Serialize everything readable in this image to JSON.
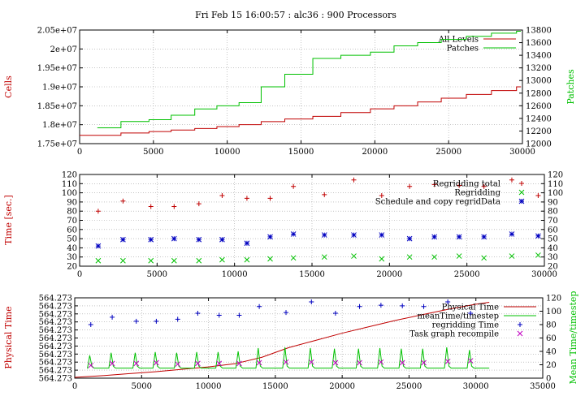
{
  "title": "Fri Feb 15 16:00:57 : alc36 : 900 Processors",
  "colors": {
    "red": "#c00000",
    "green": "#00c000",
    "blue": "#0000c0",
    "magenta": "#c000c0",
    "grid": "#a0a0a0"
  },
  "chart_data": [
    {
      "type": "line",
      "ylabel": "Cells",
      "y2label": "Patches",
      "xlim": [
        0,
        30000
      ],
      "ylim": [
        17500000,
        20500000
      ],
      "y2lim": [
        12000,
        13800
      ],
      "xticks": [
        "0",
        "5000",
        "10000",
        "15000",
        "20000",
        "25000",
        "30000"
      ],
      "yticks": [
        "1.75e+07",
        "1.8e+07",
        "1.85e+07",
        "1.9e+07",
        "1.95e+07",
        "2e+07",
        "2.05e+07"
      ],
      "y2ticks": [
        "12000",
        "12200",
        "12400",
        "12600",
        "12800",
        "13000",
        "13200",
        "13400",
        "13600",
        "13800"
      ],
      "legend_position": "top-right",
      "series": [
        {
          "name": "All Levels",
          "axis": "left",
          "color": "red",
          "step": true,
          "x": [
            0,
            2800,
            4700,
            6200,
            7800,
            9300,
            10800,
            12300,
            13900,
            15800,
            17700,
            19700,
            21300,
            22900,
            24500,
            26200,
            27900,
            29600
          ],
          "y": [
            17720000,
            17780000,
            17820000,
            17860000,
            17900000,
            17950000,
            18000000,
            18080000,
            18150000,
            18220000,
            18320000,
            18420000,
            18500000,
            18600000,
            18700000,
            18800000,
            18900000,
            19000000
          ]
        },
        {
          "name": "Patches",
          "axis": "right",
          "color": "green",
          "step": true,
          "x": [
            1200,
            2800,
            4700,
            6200,
            7800,
            9300,
            10800,
            12300,
            13900,
            15800,
            17700,
            19700,
            21300,
            22900,
            24500,
            26200,
            27900,
            29600
          ],
          "y": [
            12250,
            12350,
            12380,
            12450,
            12550,
            12600,
            12650,
            12900,
            13100,
            13350,
            13400,
            13450,
            13550,
            13600,
            13650,
            13700,
            13750,
            13780
          ]
        }
      ]
    },
    {
      "type": "scatter",
      "ylabel": "Time [sec.]",
      "xlim": [
        0,
        30000
      ],
      "ylim": [
        20,
        120
      ],
      "y2lim": [
        20,
        120
      ],
      "xticks": [
        "0",
        "5000",
        "10000",
        "15000",
        "20000",
        "25000",
        "30000"
      ],
      "yticks": [
        "20",
        "30",
        "40",
        "50",
        "60",
        "70",
        "80",
        "90",
        "100",
        "110",
        "120"
      ],
      "y2ticks": [
        "20",
        "30",
        "40",
        "50",
        "60",
        "70",
        "80",
        "90",
        "100",
        "110",
        "120"
      ],
      "legend_position": "top-right",
      "series": [
        {
          "name": "Regridding total",
          "marker": "plus",
          "color": "red",
          "x": [
            1200,
            2800,
            4600,
            6100,
            7700,
            9200,
            10800,
            12300,
            13800,
            15800,
            17700,
            19500,
            21300,
            22900,
            24500,
            26100,
            27900,
            29600
          ],
          "y": [
            80,
            91,
            85,
            85,
            88,
            97,
            94,
            94,
            107,
            98,
            114,
            97,
            107,
            109,
            108,
            107,
            114,
            97
          ]
        },
        {
          "name": "Regridding",
          "marker": "cross",
          "color": "green",
          "x": [
            1200,
            2800,
            4600,
            6100,
            7700,
            9200,
            10800,
            12300,
            13800,
            15800,
            17700,
            19500,
            21300,
            22900,
            24500,
            26100,
            27900,
            29600
          ],
          "y": [
            26,
            26,
            26,
            26,
            26,
            27,
            27,
            28,
            29,
            30,
            31,
            28,
            30,
            30,
            31,
            29,
            31,
            32
          ]
        },
        {
          "name": "Schedule and copy regridData",
          "marker": "star",
          "color": "blue",
          "x": [
            1200,
            2800,
            4600,
            6100,
            7700,
            9200,
            10800,
            12300,
            13800,
            15800,
            17700,
            19500,
            21300,
            22900,
            24500,
            26100,
            27900,
            29600
          ],
          "y": [
            42,
            49,
            49,
            50,
            49,
            49,
            45,
            52,
            55,
            54,
            54,
            54,
            50,
            52,
            52,
            52,
            55,
            53
          ]
        }
      ]
    },
    {
      "type": "line",
      "ylabel": "Physical Time",
      "y2label": "Mean Time/timestep",
      "xlim": [
        0,
        35000
      ],
      "ylim": [
        0,
        10
      ],
      "y2lim": [
        0,
        120
      ],
      "xticks": [
        "0",
        "5000",
        "10000",
        "15000",
        "20000",
        "25000",
        "30000",
        "35000"
      ],
      "yticks": [
        "564.273",
        "564.273",
        "564.273",
        "564.273",
        "564.273",
        "564.273",
        "564.273",
        "564.273",
        "564.273",
        "564.273",
        "564.273"
      ],
      "y2ticks": [
        "0",
        "20",
        "40",
        "60",
        "80",
        "100",
        "120"
      ],
      "legend_position": "top-right",
      "series": [
        {
          "name": "Physical Time",
          "axis": "left",
          "color": "red",
          "x": [
            0,
            2000,
            4000,
            6000,
            8000,
            10000,
            12000,
            14000,
            16000,
            18000,
            20000,
            22000,
            24000,
            26000,
            28000,
            30000,
            31000
          ],
          "y": [
            0.1,
            0.3,
            0.55,
            0.8,
            1.1,
            1.4,
            1.8,
            2.6,
            3.8,
            4.7,
            5.6,
            6.4,
            7.2,
            7.9,
            8.6,
            9.2,
            9.45
          ]
        },
        {
          "name": "meanTime/timestep",
          "axis": "right",
          "color": "green",
          "line": "spiky",
          "baseline": 15,
          "peaks_x": [
            1200,
            2800,
            4600,
            6100,
            7700,
            9200,
            10800,
            12300,
            13800,
            15800,
            17700,
            19500,
            21300,
            22900,
            24500,
            26100,
            27900,
            29600
          ],
          "peaks_y": [
            34,
            38,
            38,
            39,
            38,
            39,
            39,
            40,
            45,
            46,
            45,
            44,
            44,
            45,
            44,
            44,
            46,
            42
          ]
        },
        {
          "name": "regridding Time",
          "axis": "right",
          "marker": "plus",
          "color": "blue",
          "x": [
            1200,
            2800,
            4600,
            6100,
            7700,
            9200,
            10800,
            12300,
            13800,
            15800,
            17700,
            19500,
            21300,
            22900,
            24500,
            26100,
            27900,
            29600
          ],
          "y": [
            80,
            91,
            85,
            85,
            88,
            97,
            94,
            94,
            107,
            98,
            114,
            97,
            107,
            109,
            108,
            107,
            114,
            97
          ]
        },
        {
          "name": "Task graph recompile",
          "axis": "right",
          "marker": "cross",
          "color": "magenta",
          "x": [
            1200,
            2800,
            4600,
            6100,
            7700,
            9200,
            10800,
            12300,
            13800,
            15800,
            17700,
            19500,
            21300,
            22900,
            24500,
            26100,
            27900,
            29600
          ],
          "y": [
            19,
            22,
            22,
            23,
            21,
            22,
            22,
            22,
            23,
            24,
            24,
            23,
            23,
            24,
            23,
            23,
            25,
            26
          ]
        }
      ]
    }
  ]
}
